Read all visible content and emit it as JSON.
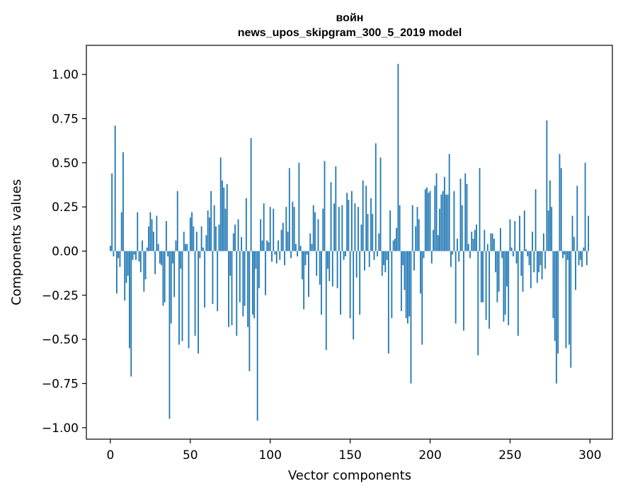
{
  "chart_data": {
    "type": "bar",
    "title_line1": "войн",
    "title_line2": "news_upos_skipgram_300_5_2019 model",
    "xlabel": "Vector components",
    "ylabel": "Components values",
    "xlim": [
      -15,
      314
    ],
    "ylim": [
      -1.065,
      1.165
    ],
    "xticks": [
      0,
      50,
      100,
      150,
      200,
      250,
      300
    ],
    "xtick_labels": [
      "0",
      "50",
      "100",
      "150",
      "200",
      "250",
      "300"
    ],
    "yticks": [
      1.0,
      0.75,
      0.5,
      0.25,
      0.0,
      -0.25,
      -0.5,
      -0.75,
      -1.0
    ],
    "ytick_labels": [
      "1.00",
      "0.75",
      "0.50",
      "0.25",
      "0.00",
      "−0.25",
      "−0.50",
      "−0.75",
      "−1.00"
    ],
    "bar_color": "#1f77b4",
    "values": [
      0.03,
      0.44,
      -0.03,
      0.71,
      -0.24,
      -0.04,
      -0.09,
      0.22,
      0.56,
      -0.28,
      -0.18,
      -0.14,
      -0.55,
      -0.71,
      -0.05,
      -0.02,
      -0.05,
      0.22,
      -0.06,
      -0.12,
      0.06,
      -0.23,
      -0.16,
      0.02,
      0.14,
      0.22,
      0.18,
      0.11,
      -0.13,
      0.2,
      0.04,
      -0.07,
      -0.08,
      -0.31,
      -0.29,
      0.17,
      -0.03,
      -0.95,
      -0.41,
      -0.07,
      -0.26,
      0.06,
      0.34,
      -0.53,
      -0.1,
      -0.51,
      0.11,
      0.04,
      0.04,
      -0.55,
      0.19,
      0.22,
      0.14,
      -0.48,
      0.11,
      -0.58,
      -0.04,
      0.14,
      0.02,
      -0.32,
      0.09,
      0.23,
      0.19,
      0.34,
      -0.3,
      0.26,
      0.14,
      -0.34,
      0.15,
      0.53,
      0.4,
      0.36,
      0.24,
      0.38,
      -0.43,
      -0.14,
      -0.42,
      0.1,
      0.15,
      -0.48,
      0.18,
      -0.29,
      0.08,
      -0.37,
      -0.31,
      0.3,
      -0.43,
      -0.68,
      0.64,
      -0.36,
      -0.38,
      -0.1,
      -0.96,
      -0.21,
      0.18,
      0.06,
      0.27,
      -0.25,
      0.06,
      0.05,
      0.25,
      -0.06,
      0.24,
      -0.02,
      -0.07,
      0.06,
      -0.05,
      0.12,
      0.16,
      -0.08,
      0.25,
      0.11,
      0.47,
      -0.04,
      0.28,
      0.25,
      0.04,
      -0.03,
      0.5,
      0.03,
      -0.16,
      -0.33,
      -0.08,
      -0.02,
      -0.26,
      0.1,
      0.04,
      0.26,
      0.22,
      -0.14,
      0.18,
      -0.19,
      -0.36,
      0.24,
      0.51,
      -0.56,
      -0.1,
      -0.17,
      0.39,
      -0.2,
      0.27,
      0.48,
      -0.21,
      0.25,
      -0.36,
      0.26,
      -0.05,
      -0.03,
      0.33,
      0.29,
      -0.38,
      0.34,
      -0.5,
      0.27,
      -0.15,
      0.25,
      -0.36,
      0.15,
      0.4,
      -0.11,
      0.37,
      0.21,
      -0.09,
      0.3,
      0.21,
      -0.05,
      0.61,
      -0.03,
      0.1,
      0.53,
      -0.14,
      -0.08,
      -0.12,
      -0.05,
      -0.58,
      0.23,
      -0.38,
      0.06,
      0.07,
      0.13,
      1.06,
      0.26,
      -0.34,
      -0.08,
      -0.22,
      -0.38,
      -0.41,
      -0.37,
      -0.75,
      0.26,
      -0.11,
      0.14,
      0.25,
      0.18,
      -0.24,
      -0.53,
      -0.04,
      0.35,
      0.36,
      0.33,
      0.34,
      -0.07,
      0.12,
      0.37,
      0.44,
      0.09,
      0.24,
      0.32,
      0.34,
      0.42,
      0.32,
      0.32,
      0.55,
      -0.09,
      -0.02,
      0.34,
      -0.41,
      0.07,
      -0.06,
      0.41,
      0.26,
      -0.45,
      0.44,
      0.38,
      0.04,
      -0.04,
      0.11,
      0.07,
      0.12,
      0.15,
      -0.59,
      0.47,
      -0.29,
      -0.29,
      0.12,
      -0.39,
      0.04,
      -0.44,
      0.1,
      0.1,
      0.07,
      -0.12,
      -0.29,
      -0.23,
      0.13,
      -0.04,
      -0.4,
      -0.36,
      -0.2,
      -0.42,
      0.18,
      0.02,
      -0.03,
      0.17,
      -0.07,
      -0.48,
      0.2,
      -0.14,
      -0.23,
      0.23,
      0.01,
      -0.03,
      -0.08,
      -0.21,
      0.11,
      -0.12,
      0.35,
      -0.18,
      -0.12,
      -0.08,
      -0.16,
      0.1,
      -0.1,
      0.74,
      0.23,
      0.4,
      0.25,
      -0.38,
      -0.51,
      -0.75,
      -0.58,
      0.55,
      0.47,
      -0.04,
      -0.02,
      -0.55,
      -0.05,
      -0.53,
      -0.66,
      0.2,
      0.08,
      -0.22,
      0.37,
      -0.08,
      -0.05,
      -0.09,
      0.02,
      0.5,
      -0.08,
      0.2
    ]
  }
}
